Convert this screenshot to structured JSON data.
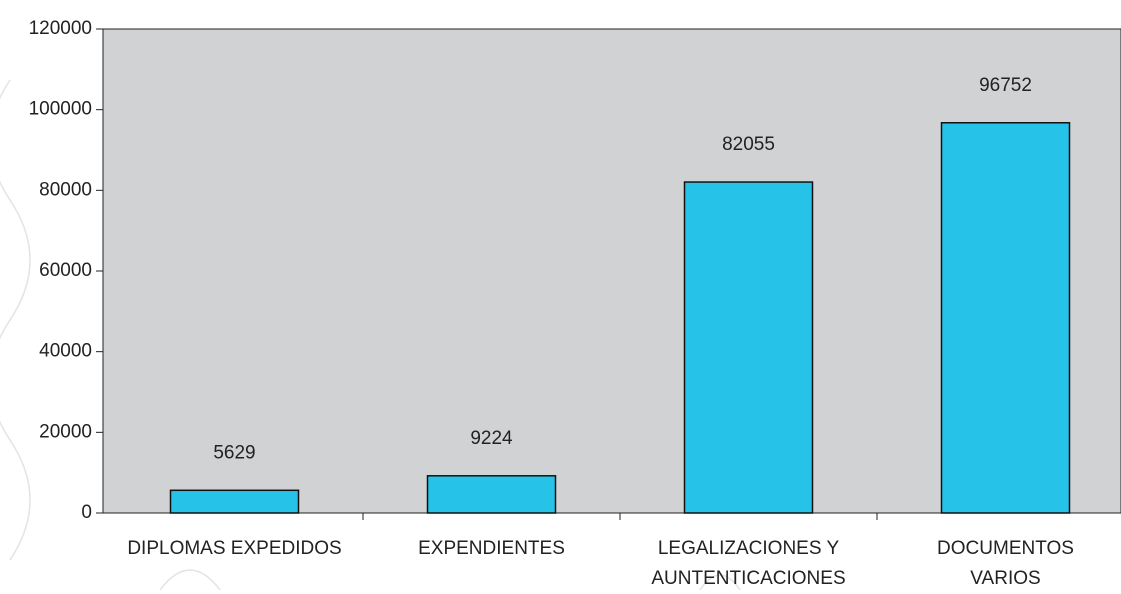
{
  "chart_data": {
    "type": "bar",
    "categories": [
      "DIPLOMAS EXPEDIDOS",
      "EXPENDIENTES",
      "LEGALIZACIONES Y AUNTENTICACIONES",
      "DOCUMENTOS VARIOS"
    ],
    "values": [
      5629,
      9224,
      82055,
      96752
    ],
    "color": "#27c2e8",
    "ylim": [
      0,
      120000
    ],
    "yticks": [
      0,
      20000,
      40000,
      60000,
      80000,
      100000,
      120000
    ],
    "grid": false
  }
}
